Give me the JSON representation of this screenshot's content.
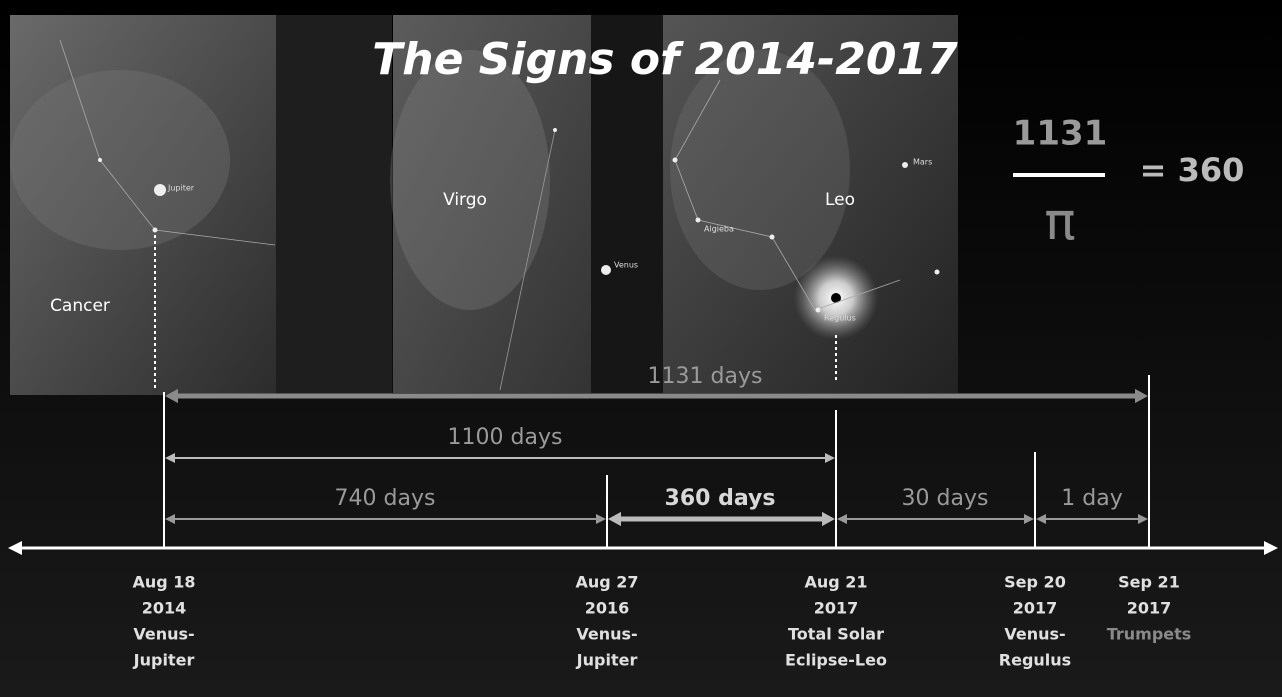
{
  "title": "The Signs of 2014-2017",
  "constellations": [
    "Cancer",
    "Virgo",
    "Leo"
  ],
  "star_labels": [
    "Jupiter",
    "Venus",
    "Algieba",
    "Mars",
    "Regulus"
  ],
  "formula": {
    "numerator": "1131",
    "denominator": "π",
    "result": "= 360"
  },
  "spans": [
    "1131 days",
    "1100 days",
    "740 days",
    "360 days",
    "30 days",
    "1 day"
  ],
  "dates": [
    {
      "lines": [
        "Aug 18",
        "2014",
        "Venus-",
        "Jupiter"
      ]
    },
    {
      "lines": [
        "Aug 27",
        "2016",
        "Venus-",
        "Jupiter"
      ]
    },
    {
      "lines": [
        "Aug 21",
        "2017",
        "Total Solar",
        "Eclipse-Leo"
      ]
    },
    {
      "lines": [
        "Sep 20",
        "2017",
        "Venus-",
        "Regulus"
      ]
    },
    {
      "lines": [
        "Sep 21",
        "2017",
        "Trumpets"
      ]
    }
  ]
}
